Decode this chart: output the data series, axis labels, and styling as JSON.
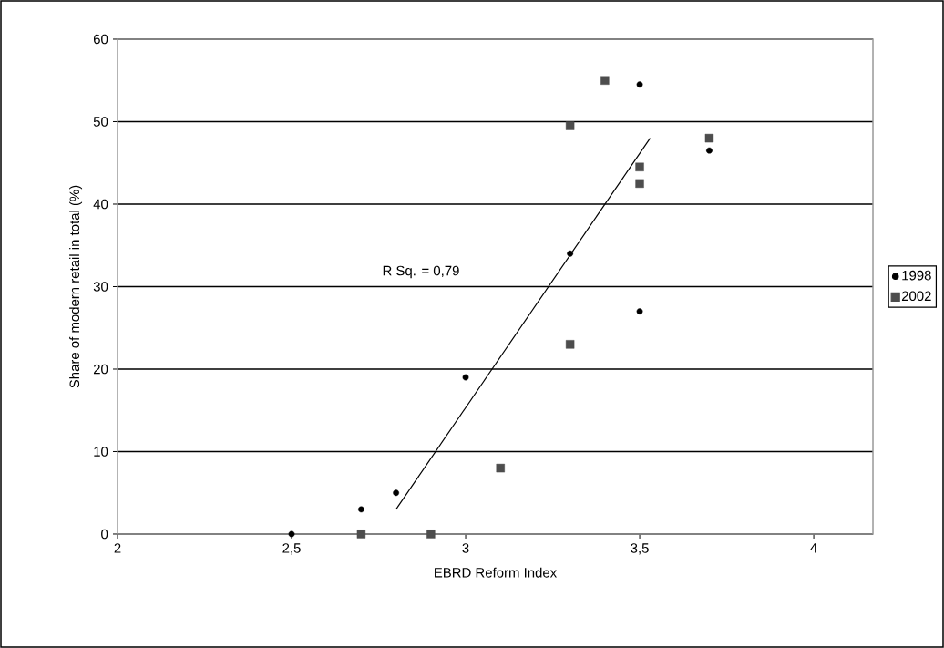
{
  "chart_data": {
    "type": "scatter",
    "xlabel": "EBRD Reform Index",
    "ylabel": "Share of modern retail in total (%)",
    "xlim": [
      2,
      4.17
    ],
    "ylim": [
      0,
      60
    ],
    "xticks": [
      2,
      {
        "value": 2.5,
        "label": "2,5"
      },
      3,
      {
        "value": 3.5,
        "label": "3,5"
      },
      4
    ],
    "yticks": [
      0,
      10,
      20,
      30,
      40,
      50,
      60
    ],
    "grid": "y",
    "legend": "right",
    "annotations": [
      "R Sq. = 0,79"
    ],
    "series": [
      {
        "name": "1998",
        "color": "#000000",
        "marker": "circle",
        "x": [
          2.5,
          2.7,
          2.8,
          3.0,
          3.3,
          3.5,
          3.5,
          3.7
        ],
        "values": [
          0,
          3,
          5,
          19,
          34,
          54.5,
          27,
          46.5
        ]
      },
      {
        "name": "2002",
        "color": "#4d4d4d",
        "marker": "square",
        "x": [
          2.7,
          2.9,
          3.1,
          3.3,
          3.3,
          3.4,
          3.5,
          3.5,
          3.7
        ],
        "values": [
          0,
          0,
          8,
          49.5,
          23,
          55,
          44.5,
          42.5,
          48
        ]
      },
      {
        "type": "line",
        "color": "#000000",
        "marker": "none",
        "x": [
          2.8,
          3.53
        ],
        "values": [
          3,
          48
        ]
      }
    ]
  }
}
